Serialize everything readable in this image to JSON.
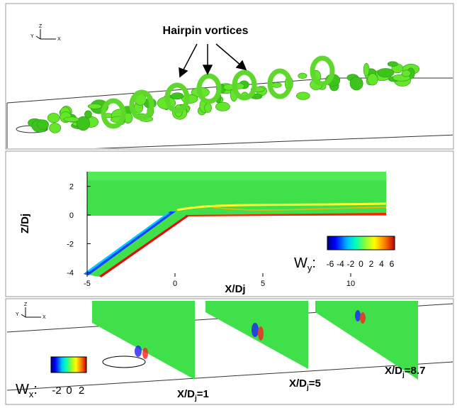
{
  "panels": [
    {
      "annotation": "Hairpin vortices",
      "axes_triad": [
        "Z",
        "Y",
        "X"
      ]
    },
    {
      "y_axis_label": "Z/Dj",
      "x_axis_label": "X/Dj",
      "yticks": [
        2,
        0,
        -2,
        -4
      ],
      "xticks": [
        -5,
        0,
        5,
        10
      ],
      "colorbar": {
        "symbol": "W",
        "subscript": "y",
        "suffix": ":",
        "ticks": [
          -6,
          -4,
          -2,
          0,
          2,
          4,
          6
        ]
      }
    },
    {
      "axes_triad": [
        "Z",
        "Y",
        "X"
      ],
      "colorbar": {
        "symbol": "W",
        "subscript": "x",
        "suffix": ":",
        "ticks": [
          -2,
          0,
          2
        ]
      },
      "slice_labels": [
        {
          "text": "X/D",
          "subscript": "j",
          "suffix": "=1"
        },
        {
          "text": "X/D",
          "subscript": "j",
          "suffix": "=5"
        },
        {
          "text": "X/D",
          "subscript": "j",
          "suffix": "=8.7"
        }
      ]
    }
  ]
}
